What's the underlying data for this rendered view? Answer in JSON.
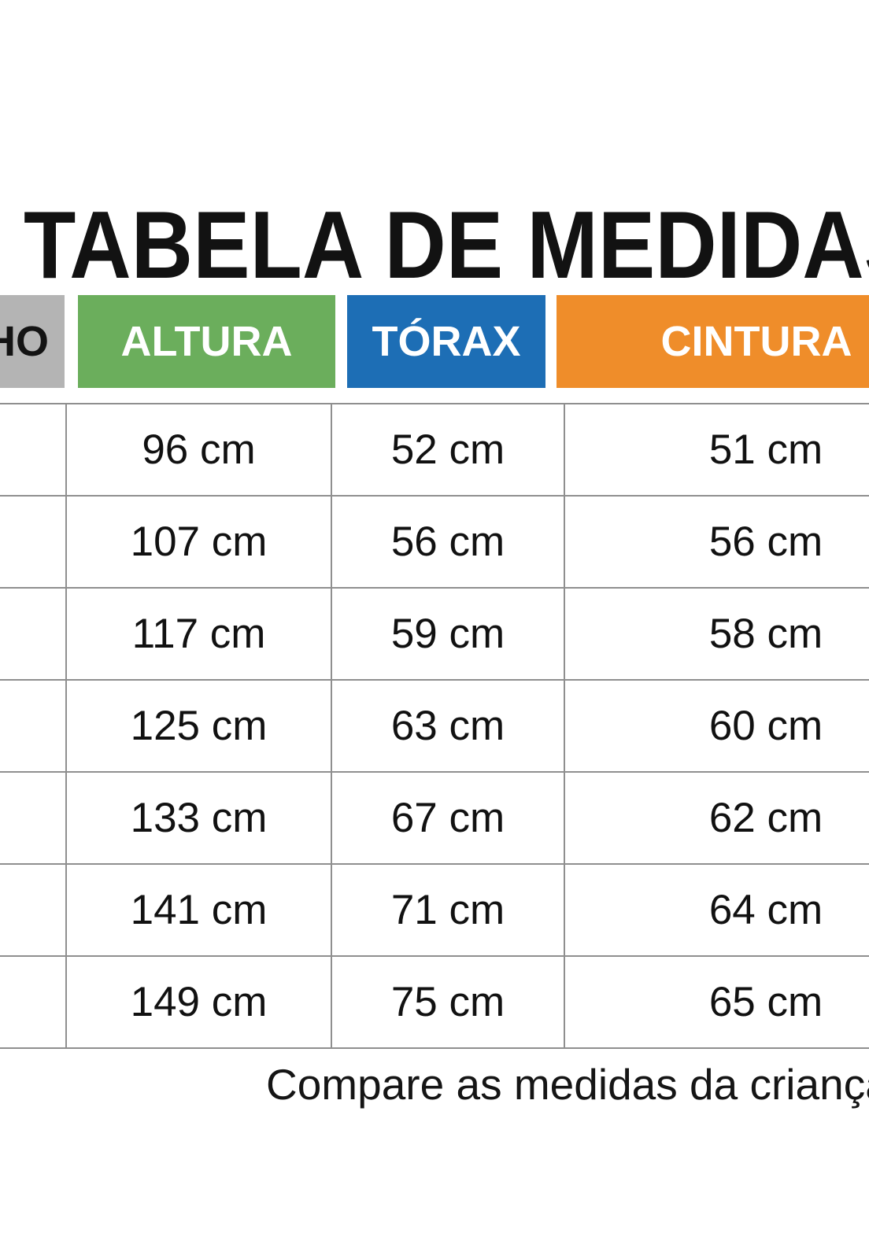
{
  "title": "TABELA DE MEDIDAS",
  "footer_note": "Compare as medidas da criança",
  "colors": {
    "tamanho_header": "#b4b4b4",
    "altura_header": "#6bae5c",
    "torax_header": "#1d6eb5",
    "cintura_header": "#ef8d2a",
    "grid_border": "#8f8f8f",
    "header_text": "#ffffff",
    "tamanho_header_text": "#131313"
  },
  "table": {
    "columns": [
      {
        "key": "tamanho",
        "label": "TAMANHO",
        "color": "#b4b4b4"
      },
      {
        "key": "altura",
        "label": "ALTURA",
        "color": "#6bae5c"
      },
      {
        "key": "torax",
        "label": "TÓRAX",
        "color": "#1d6eb5"
      },
      {
        "key": "cintura",
        "label": "CINTURA",
        "color": "#ef8d2a"
      }
    ],
    "rows": [
      {
        "tamanho": "",
        "altura": "96 cm",
        "torax": "52 cm",
        "cintura": "51 cm"
      },
      {
        "tamanho": "",
        "altura": "107 cm",
        "torax": "56 cm",
        "cintura": "56 cm"
      },
      {
        "tamanho": "",
        "altura": "117 cm",
        "torax": "59 cm",
        "cintura": "58 cm"
      },
      {
        "tamanho": "",
        "altura": "125 cm",
        "torax": "63 cm",
        "cintura": "60 cm"
      },
      {
        "tamanho": "",
        "altura": "133 cm",
        "torax": "67 cm",
        "cintura": "62 cm"
      },
      {
        "tamanho": "",
        "altura": "141 cm",
        "torax": "71 cm",
        "cintura": "64 cm"
      },
      {
        "tamanho": "",
        "altura": "149 cm",
        "torax": "75 cm",
        "cintura": "65 cm"
      }
    ]
  },
  "chart_data": {
    "type": "table",
    "title": "TABELA DE MEDIDAS",
    "columns": [
      "TAMANHO",
      "ALTURA",
      "TÓRAX",
      "CINTURA"
    ],
    "rows": [
      [
        "",
        "96 cm",
        "52 cm",
        "51 cm"
      ],
      [
        "",
        "107 cm",
        "56 cm",
        "56 cm"
      ],
      [
        "",
        "117 cm",
        "59 cm",
        "58 cm"
      ],
      [
        "",
        "125 cm",
        "63 cm",
        "60 cm"
      ],
      [
        "",
        "133 cm",
        "67 cm",
        "62 cm"
      ],
      [
        "",
        "141 cm",
        "71 cm",
        "64 cm"
      ],
      [
        "",
        "149 cm",
        "75 cm",
        "65 cm"
      ]
    ],
    "note": "Compare as medidas da criança"
  }
}
